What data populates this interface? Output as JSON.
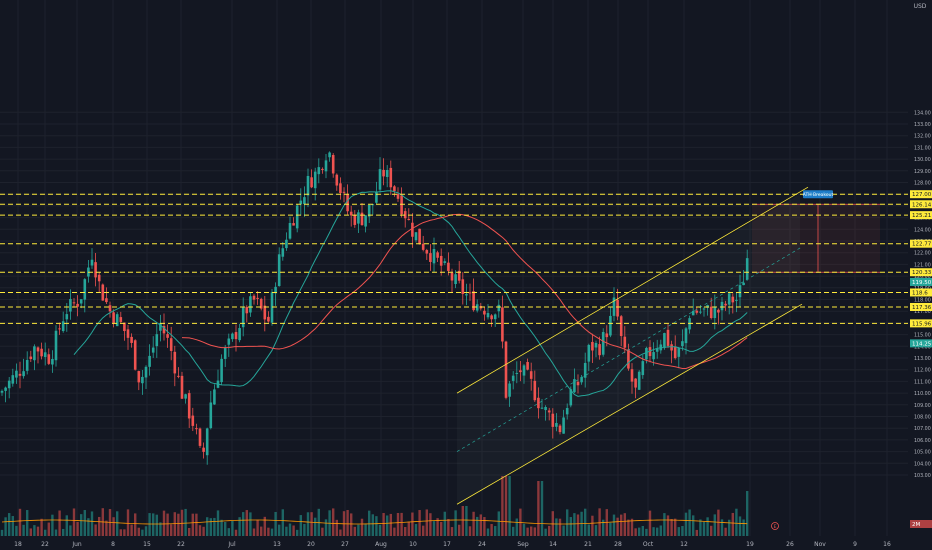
{
  "chart_data": {
    "type": "candlestick",
    "currency": "USD",
    "y_axis_label_top": "USD",
    "x_ticks": [
      "18",
      "22",
      "Jun",
      "8",
      "15",
      "22",
      "Jul",
      "13",
      "20",
      "27",
      "Aug",
      "10",
      "17",
      "24",
      "Sep",
      "14",
      "21",
      "28",
      "Oct",
      "12",
      "19",
      "26",
      "Nov",
      "9",
      "16"
    ],
    "y_ticks": [
      103,
      104,
      105,
      106,
      107,
      108,
      109,
      110,
      111,
      112,
      113,
      114,
      115,
      116,
      117,
      118,
      119,
      120,
      121,
      122,
      123,
      124,
      125,
      126,
      127,
      128,
      129,
      130,
      131,
      132,
      133,
      134
    ],
    "y_range": [
      102,
      135
    ],
    "horizontal_levels": [
      {
        "price": 127.0,
        "label": "127.00",
        "color": "#ffeb3b"
      },
      {
        "price": 126.14,
        "label": "126.14",
        "color": "#ffeb3b"
      },
      {
        "price": 125.21,
        "label": "125.21",
        "color": "#ffeb3b"
      },
      {
        "price": 122.77,
        "label": "122.77",
        "color": "#ffeb3b"
      },
      {
        "price": 120.33,
        "label": "120.33",
        "color": "#ffeb3b"
      },
      {
        "price": 118.6,
        "label": "118.6",
        "color": "#ffeb3b"
      },
      {
        "price": 117.36,
        "label": "117.36",
        "color": "#ffeb3b"
      },
      {
        "price": 115.96,
        "label": "115.96",
        "color": "#ffeb3b"
      }
    ],
    "last_price": {
      "price": 119.5,
      "label": "119.50",
      "color": "#26a69a"
    },
    "ma_tags": [
      {
        "price": 114.25,
        "label": "114.25",
        "color": "#26a69a"
      }
    ],
    "target_label": "ATH Breakout",
    "volume_label": "2M",
    "colors": {
      "up": "#26a69a",
      "down": "#ef5350",
      "ma_fast": "#26a69a",
      "ma_slow": "#ef5350",
      "level": "#ffeb3b",
      "channel": "#ffeb3b",
      "background": "#131722",
      "grid": "#1e222d"
    },
    "grid": true,
    "legend_position": "none"
  },
  "labels": {
    "axis_currency": "USD",
    "earnings_marker": "E"
  }
}
